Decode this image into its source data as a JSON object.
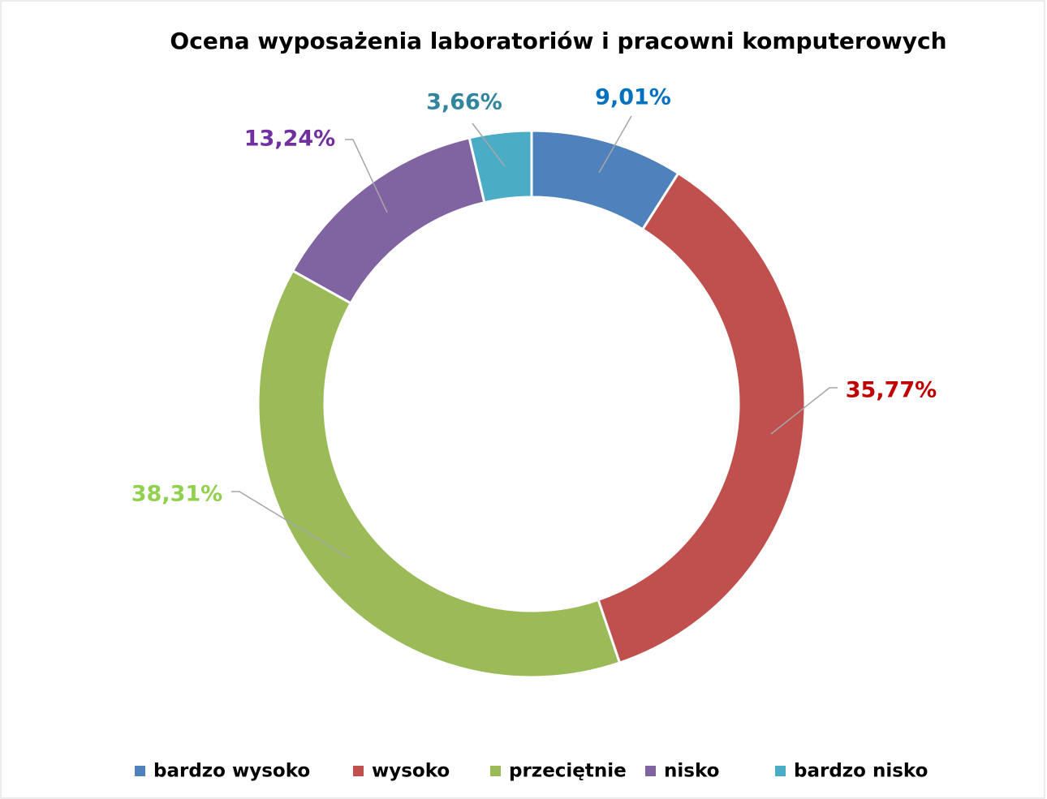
{
  "chart_data": {
    "type": "donut",
    "title": "Ocena wyposażenia laboratoriów i pracowni komputerowych",
    "categories": [
      "bardzo wysoko",
      "wysoko",
      "przeciętnie",
      "nisko",
      "bardzo nisko"
    ],
    "values": [
      9.01,
      35.77,
      38.31,
      13.24,
      3.66
    ],
    "value_labels": [
      "9,01%",
      "35,77%",
      "38,31%",
      "13,24%",
      "3,66%"
    ],
    "colors": [
      "#4f81bd",
      "#c0504d",
      "#9bbb59",
      "#8064a2",
      "#4bacc6"
    ],
    "label_colors": [
      "#0070c0",
      "#c00000",
      "#92d050",
      "#7030a0",
      "#31859c"
    ],
    "legend": "bottom"
  }
}
